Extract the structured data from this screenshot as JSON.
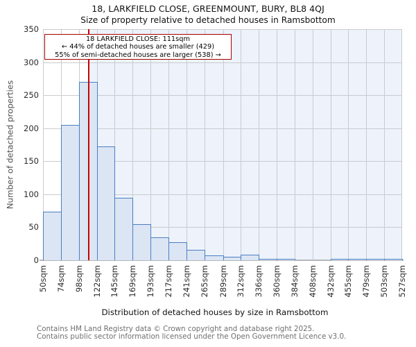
{
  "title": "18, LARKFIELD CLOSE, GREENMOUNT, BURY, BL8 4QJ",
  "subtitle": "Size of property relative to detached houses in Ramsbottom",
  "annotation": {
    "line1": "18 LARKFIELD CLOSE: 111sqm",
    "line2": "← 44% of detached houses are smaller (429)",
    "line3": "55% of semi-detached houses are larger (538) →"
  },
  "footer": {
    "line1": "Contains HM Land Registry data © Crown copyright and database right 2025.",
    "line2": "Contains public sector information licensed under the Open Government Licence v3.0."
  },
  "chart_data": {
    "type": "bar",
    "title": "18, LARKFIELD CLOSE, GREENMOUNT, BURY, BL8 4QJ",
    "subtitle": "Size of property relative to detached houses in Ramsbottom",
    "xlabel": "Distribution of detached houses by size in Ramsbottom",
    "ylabel": "Number of detached properties",
    "bin_edges_sqm": [
      50,
      74,
      98,
      122,
      145,
      169,
      193,
      217,
      241,
      265,
      289,
      312,
      336,
      360,
      384,
      408,
      432,
      455,
      479,
      503,
      527
    ],
    "x_tick_labels": [
      "50sqm",
      "74sqm",
      "98sqm",
      "122sqm",
      "145sqm",
      "169sqm",
      "193sqm",
      "217sqm",
      "241sqm",
      "265sqm",
      "289sqm",
      "312sqm",
      "336sqm",
      "360sqm",
      "384sqm",
      "408sqm",
      "432sqm",
      "455sqm",
      "479sqm",
      "503sqm",
      "527sqm"
    ],
    "values": [
      74,
      205,
      270,
      172,
      95,
      55,
      35,
      27,
      16,
      7,
      5,
      8,
      2,
      2,
      0,
      0,
      1,
      1,
      1,
      1
    ],
    "y_ticks": [
      0,
      50,
      100,
      150,
      200,
      250,
      300,
      350
    ],
    "ylim": [
      0,
      350
    ],
    "xlim_sqm": [
      50,
      527
    ],
    "grid": true,
    "legend": "none",
    "property_line_sqm": 111,
    "colors": {
      "bar_fill": "#dbe5f4",
      "bar_stroke": "#4a7fc1",
      "shade_right_of_line": "#edf2fb",
      "gridline": "#c9cccf",
      "axis_line": "#b3b6bb",
      "property_line": "#cc0000",
      "annotation_border": "#a40000"
    }
  }
}
